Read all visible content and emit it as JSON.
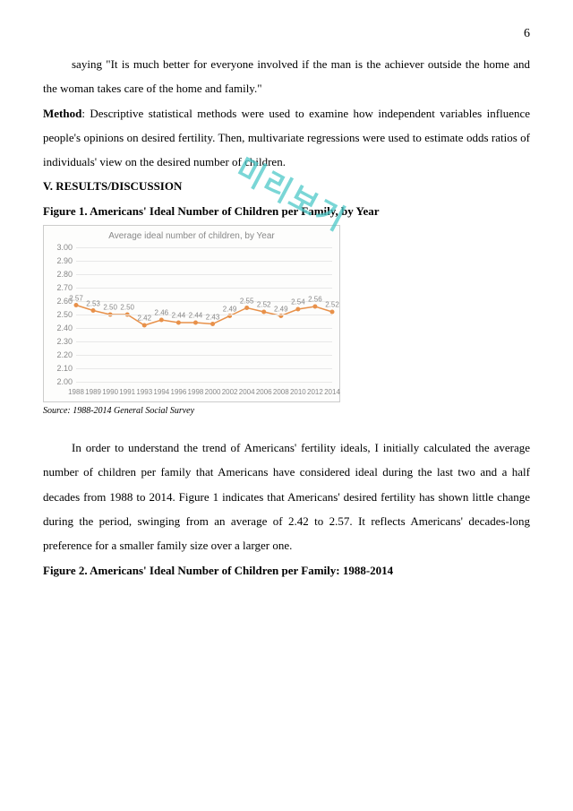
{
  "page_number": "6",
  "para1": "saying \"It is much better for everyone involved if the man is the achiever outside the home and the woman takes care of the home and family.\"",
  "method_label": "Method",
  "method_text": ": Descriptive statistical methods were used to examine how independent variables influence people's opinions on desired fertility. Then, multivariate regressions were used to estimate odds ratios of individuals' view on the desired number of children.",
  "heading_results": "V. RESULTS/DISCUSSION",
  "figure1_title": "Figure 1. Americans' Ideal Number of Children per Family, by Year",
  "figure2_title": "Figure 2. Americans' Ideal Number of Children per Family: 1988-2014",
  "source_text": "Source: 1988-2014 General Social Survey",
  "discussion_para": "In order to understand the trend of Americans' fertility ideals, I initially calculated the average number of children per family that Americans have considered ideal during the last two and a half decades from 1988 to 2014. Figure 1 indicates that Americans' desired fertility has shown little change during the period, swinging from an average of 2.42 to 2.57. It reflects Americans' decades-long preference for a smaller family size over a larger one.",
  "watermark": "미리보기",
  "chart": {
    "title": "Average ideal number of children, by Year",
    "x_years": [
      "1988",
      "1989",
      "1990",
      "1991",
      "1993",
      "1994",
      "1996",
      "1998",
      "2000",
      "2002",
      "2004",
      "2006",
      "2008",
      "2010",
      "2012",
      "2014"
    ],
    "values": [
      2.57,
      2.53,
      2.5,
      2.5,
      2.42,
      2.46,
      2.44,
      2.44,
      2.43,
      2.49,
      2.55,
      2.52,
      2.49,
      2.54,
      2.56,
      2.52
    ],
    "data_labels": [
      "2.57",
      "2.53",
      "2.50",
      "2.50",
      "2.42",
      "2.46",
      "2.44",
      "2.44",
      "2.43",
      "2.49",
      "2.55",
      "2.52",
      "2.49",
      "2.54",
      "2.56",
      "2.52"
    ],
    "y_ticks": [
      2.0,
      2.1,
      2.2,
      2.3,
      2.4,
      2.5,
      2.6,
      2.7,
      2.8,
      2.9,
      3.0
    ],
    "y_min": 2.0,
    "y_max": 3.0,
    "line_color": "#e8914a",
    "marker_color": "#e8914a",
    "grid_color": "#e8e8e8",
    "background": "#fdfdfc",
    "tick_font_color": "#888888"
  }
}
